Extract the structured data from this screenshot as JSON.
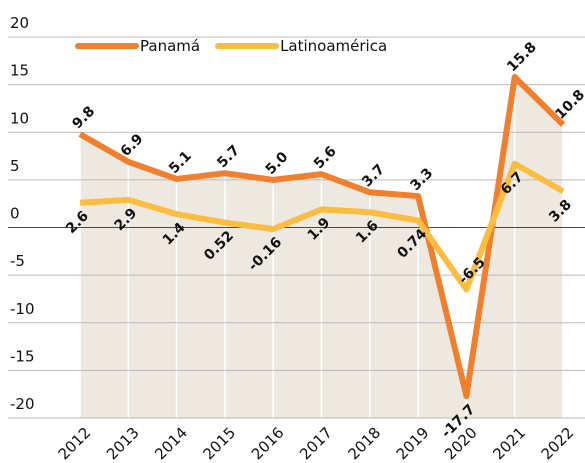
{
  "chart_data": {
    "type": "line",
    "categories": [
      "2012",
      "2013",
      "2014",
      "2015",
      "2016",
      "2017",
      "2018",
      "2019",
      "2020",
      "2021",
      "2022"
    ],
    "series": [
      {
        "name": "Panamá",
        "color": "#f07f2e",
        "values": [
          9.8,
          6.9,
          5.1,
          5.7,
          5.0,
          5.6,
          3.7,
          3.3,
          -17.7,
          15.8,
          10.8
        ],
        "value_labels": [
          "9.8",
          "6.9",
          "5.1",
          "5.7",
          "5.0",
          "5.6",
          "3.7",
          "3.3",
          "-17.7",
          "15.8",
          "10.8"
        ]
      },
      {
        "name": "Latinoamérica",
        "color": "#fbbd3f",
        "values": [
          2.6,
          2.9,
          1.4,
          0.52,
          -0.16,
          1.9,
          1.6,
          0.74,
          -6.5,
          6.7,
          3.8
        ],
        "value_labels": [
          "2.6",
          "2.9",
          "1.4",
          "0.52",
          "-0.16",
          "1.9",
          "1.6",
          "0.74",
          "-6.5",
          "6.7",
          "3.8"
        ]
      }
    ],
    "ylim": [
      -20,
      20
    ],
    "yticks": [
      -20,
      -15,
      -10,
      -5,
      0,
      5,
      10,
      15,
      20
    ],
    "grid": true,
    "legend": "top"
  }
}
